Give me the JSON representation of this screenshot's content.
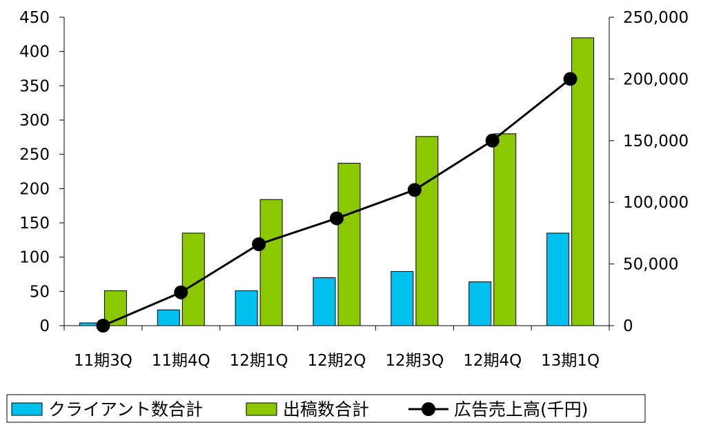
{
  "chart_data": {
    "type": "bar",
    "categories": [
      "11期3Q",
      "11期4Q",
      "12期1Q",
      "12期2Q",
      "12期3Q",
      "12期4Q",
      "13期1Q"
    ],
    "series": [
      {
        "name": "クライアント数合計",
        "kind": "bar",
        "axis": "left",
        "color": "#00c0f0",
        "values": [
          4,
          23,
          51,
          70,
          79,
          64,
          135
        ]
      },
      {
        "name": "出稿数合計",
        "kind": "bar",
        "axis": "left",
        "color": "#8cc800",
        "values": [
          51,
          135,
          184,
          237,
          276,
          280,
          420
        ]
      },
      {
        "name": "広告売上高(千円)",
        "kind": "line",
        "axis": "right",
        "color": "#000000",
        "values": [
          0,
          27000,
          66000,
          87000,
          110000,
          150000,
          200000
        ]
      }
    ],
    "y_left": {
      "min": 0,
      "max": 450,
      "ticks": [
        "0",
        "50",
        "100",
        "150",
        "200",
        "250",
        "300",
        "350",
        "400",
        "450"
      ]
    },
    "y_right": {
      "min": 0,
      "max": 250000,
      "ticks": [
        "0",
        "50,000",
        "100,000",
        "150,000",
        "200,000",
        "250,000"
      ]
    },
    "grid": false,
    "legend_position": "bottom"
  }
}
